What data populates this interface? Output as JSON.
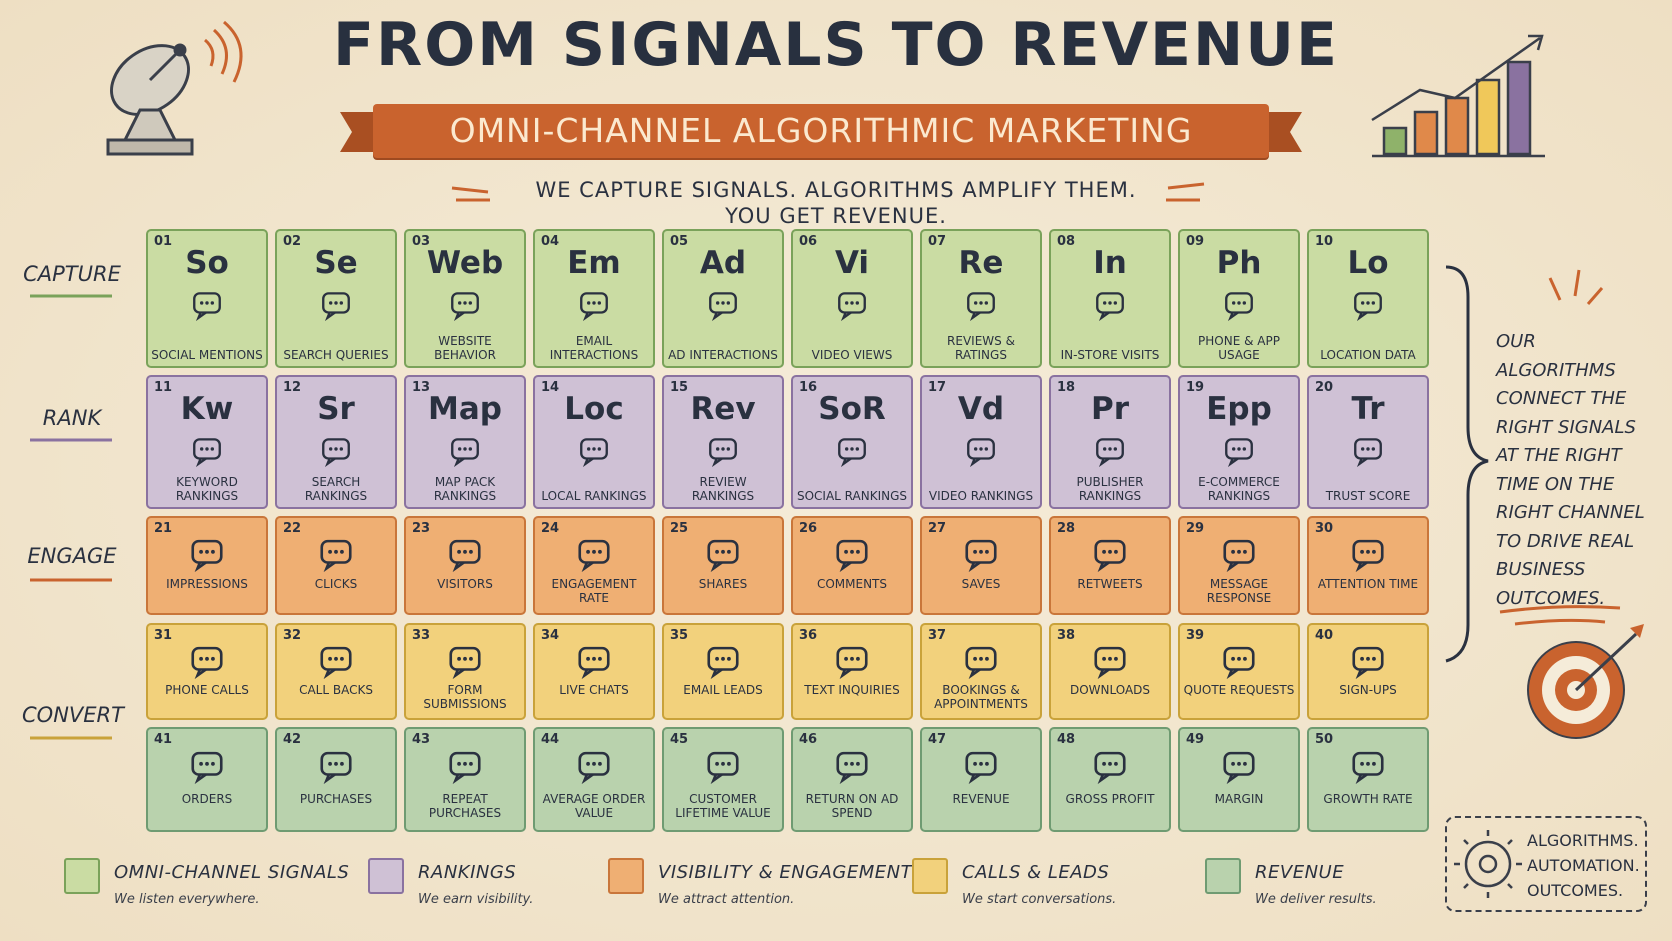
{
  "header": {
    "title": "FROM SIGNALS TO REVENUE",
    "subtitle": "OMNI-CHANNEL ALGORITHMIC MARKETING",
    "tagline": [
      "WE CAPTURE SIGNALS. ALGORITHMS AMPLIFY THEM.",
      "YOU GET REVENUE."
    ]
  },
  "stages": [
    "CAPTURE",
    "RANK",
    "ENGAGE",
    "CONVERT"
  ],
  "table": {
    "rows": [
      {
        "cells": [
          {
            "number": "01",
            "symbol": "So",
            "name": "SOCIAL MENTIONS"
          },
          {
            "number": "02",
            "symbol": "Se",
            "name": "SEARCH QUERIES"
          },
          {
            "number": "03",
            "symbol": "Web",
            "name": "WEBSITE BEHAVIOR"
          },
          {
            "number": "04",
            "symbol": "Em",
            "name": "EMAIL INTERACTIONS"
          },
          {
            "number": "05",
            "symbol": "Ad",
            "name": "AD INTERACTIONS"
          },
          {
            "number": "06",
            "symbol": "Vi",
            "name": "VIDEO VIEWS"
          },
          {
            "number": "07",
            "symbol": "Re",
            "name": "REVIEWS & RATINGS"
          },
          {
            "number": "08",
            "symbol": "In",
            "name": "IN-STORE VISITS"
          },
          {
            "number": "09",
            "symbol": "Ph",
            "name": "PHONE & APP USAGE"
          },
          {
            "number": "10",
            "symbol": "Lo",
            "name": "LOCATION DATA"
          }
        ]
      },
      {
        "cells": [
          {
            "number": "11",
            "symbol": "Kw",
            "name": "KEYWORD RANKINGS"
          },
          {
            "number": "12",
            "symbol": "Sr",
            "name": "SEARCH RANKINGS"
          },
          {
            "number": "13",
            "symbol": "Map",
            "name": "MAP PACK RANKINGS"
          },
          {
            "number": "14",
            "symbol": "Loc",
            "name": "LOCAL RANKINGS"
          },
          {
            "number": "15",
            "symbol": "Rev",
            "name": "REVIEW RANKINGS"
          },
          {
            "number": "16",
            "symbol": "SoR",
            "name": "SOCIAL RANKINGS"
          },
          {
            "number": "17",
            "symbol": "Vd",
            "name": "VIDEO RANKINGS"
          },
          {
            "number": "18",
            "symbol": "Pr",
            "name": "PUBLISHER RANKINGS"
          },
          {
            "number": "19",
            "symbol": "Epp",
            "name": "E-COMMERCE RANKINGS"
          },
          {
            "number": "20",
            "symbol": "Tr",
            "name": "TRUST SCORE"
          }
        ]
      },
      {
        "cells": [
          {
            "number": "21",
            "name": "IMPRESSIONS"
          },
          {
            "number": "22",
            "name": "CLICKS"
          },
          {
            "number": "23",
            "name": "VISITORS"
          },
          {
            "number": "24",
            "name": "ENGAGEMENT RATE"
          },
          {
            "number": "25",
            "name": "SHARES"
          },
          {
            "number": "26",
            "name": "COMMENTS"
          },
          {
            "number": "27",
            "name": "SAVES"
          },
          {
            "number": "28",
            "name": "RETWEETS"
          },
          {
            "number": "29",
            "name": "MESSAGE RESPONSE"
          },
          {
            "number": "30",
            "name": "ATTENTION TIME"
          }
        ]
      },
      {
        "cells": [
          {
            "number": "31",
            "name": "PHONE CALLS"
          },
          {
            "number": "32",
            "name": "CALL BACKS"
          },
          {
            "number": "33",
            "name": "FORM SUBMISSIONS"
          },
          {
            "number": "34",
            "name": "LIVE CHATS"
          },
          {
            "number": "35",
            "name": "EMAIL LEADS"
          },
          {
            "number": "36",
            "name": "TEXT INQUIRIES"
          },
          {
            "number": "37",
            "name": "BOOKINGS & APPOINTMENTS"
          },
          {
            "number": "38",
            "name": "DOWNLOADS"
          },
          {
            "number": "39",
            "name": "QUOTE REQUESTS"
          },
          {
            "number": "40",
            "name": "SIGN-UPS"
          }
        ]
      },
      {
        "cells": [
          {
            "number": "41",
            "name": "ORDERS"
          },
          {
            "number": "42",
            "name": "PURCHASES"
          },
          {
            "number": "43",
            "name": "REPEAT PURCHASES"
          },
          {
            "number": "44",
            "name": "AVERAGE ORDER VALUE"
          },
          {
            "number": "45",
            "name": "CUSTOMER LIFETIME VALUE"
          },
          {
            "number": "46",
            "name": "RETURN ON AD SPEND"
          },
          {
            "number": "47",
            "name": "REVENUE"
          },
          {
            "number": "48",
            "name": "GROSS PROFIT"
          },
          {
            "number": "49",
            "name": "MARGIN"
          },
          {
            "number": "50",
            "name": "GROWTH RATE"
          }
        ]
      }
    ]
  },
  "side_note": "OUR ALGORITHMS CONNECT THE RIGHT SIGNALS AT THE RIGHT TIME ON THE RIGHT CHANNEL TO DRIVE REAL BUSINESS OUTCOMES.",
  "legend": [
    {
      "title": "OMNI-CHANNEL SIGNALS",
      "subtitle": "We listen everywhere."
    },
    {
      "title": "RANKINGS",
      "subtitle": "We earn visibility."
    },
    {
      "title": "VISIBILITY & ENGAGEMENT",
      "subtitle": "We attract attention."
    },
    {
      "title": "CALLS & LEADS",
      "subtitle": "We start conversations."
    },
    {
      "title": "REVENUE",
      "subtitle": "We deliver results."
    }
  ],
  "footer": "ALGORITHMS. AUTOMATION. OUTCOMES."
}
